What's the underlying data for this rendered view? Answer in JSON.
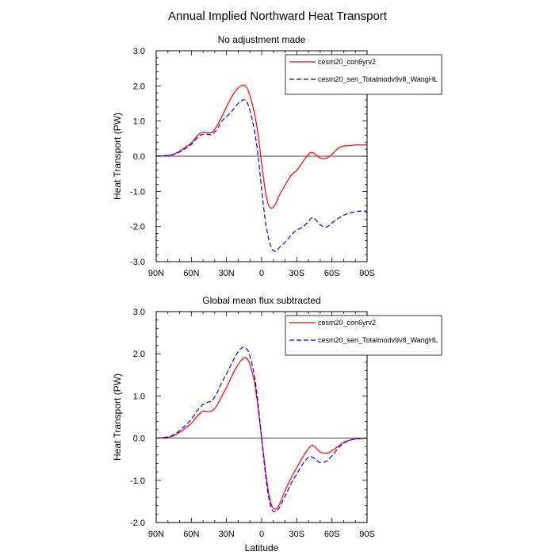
{
  "figure": {
    "title": "Annual Implied Northward Heat Transport"
  },
  "colors": {
    "series1": "#ff0000",
    "series2": "#0000ff",
    "axis": "#000000",
    "zero_line": "#000000"
  },
  "chart_data": [
    {
      "type": "line",
      "title": "No adjustment made",
      "xlabel": "",
      "ylabel": "Heat Transport (PW)",
      "xlim": [
        90,
        -90
      ],
      "ylim": [
        -3.0,
        3.0
      ],
      "x_tick_values": [
        90,
        60,
        30,
        0,
        -30,
        -60,
        -90
      ],
      "x_tick_labels": [
        "90N",
        "60N",
        "30N",
        "0",
        "30S",
        "60S",
        "90S"
      ],
      "y_tick_values": [
        3.0,
        2.0,
        1.0,
        0.0,
        -1.0,
        -2.0,
        -3.0
      ],
      "y_tick_labels": [
        "3.0",
        "2.0",
        "1.0",
        "0.0",
        "-1.0",
        "-2.0",
        "-3.0"
      ],
      "zero_line": true,
      "grid": false,
      "legend_placement": "top-right",
      "series": [
        {
          "name": "cesm20_con6yrv2",
          "style": "solid",
          "x": [
            90,
            85,
            80,
            75,
            70,
            65,
            60,
            55,
            52,
            50,
            46,
            42,
            38,
            34,
            30,
            25,
            20,
            16,
            13,
            10,
            6,
            3,
            0,
            -3,
            -6,
            -9,
            -12,
            -15,
            -20,
            -25,
            -30,
            -35,
            -40,
            -43,
            -46,
            -50,
            -55,
            -60,
            -65,
            -70,
            -75,
            -80,
            -85,
            -90
          ],
          "y": [
            0.0,
            0.01,
            0.02,
            0.06,
            0.14,
            0.26,
            0.38,
            0.58,
            0.66,
            0.68,
            0.66,
            0.69,
            0.87,
            1.12,
            1.4,
            1.72,
            1.94,
            2.02,
            1.97,
            1.72,
            1.2,
            0.6,
            -0.2,
            -0.95,
            -1.4,
            -1.47,
            -1.35,
            -1.12,
            -0.83,
            -0.55,
            -0.4,
            -0.17,
            0.06,
            0.11,
            0.05,
            -0.05,
            -0.06,
            0.05,
            0.22,
            0.29,
            0.3,
            0.32,
            0.32,
            0.32
          ]
        },
        {
          "name": "cesm20_sen_Totalmodv9v8_WangHL",
          "style": "dashed",
          "x": [
            90,
            85,
            80,
            75,
            70,
            65,
            60,
            55,
            52,
            50,
            46,
            42,
            38,
            34,
            30,
            25,
            20,
            16,
            13,
            10,
            6,
            3,
            0,
            -3,
            -6,
            -9,
            -12,
            -15,
            -20,
            -25,
            -30,
            -35,
            -40,
            -43,
            -46,
            -50,
            -55,
            -60,
            -65,
            -70,
            -75,
            -80,
            -85,
            -90
          ],
          "y": [
            0.0,
            0.01,
            0.02,
            0.05,
            0.12,
            0.22,
            0.34,
            0.52,
            0.6,
            0.62,
            0.62,
            0.63,
            0.77,
            1.0,
            1.12,
            1.3,
            1.5,
            1.6,
            1.56,
            1.3,
            0.7,
            0.0,
            -0.95,
            -1.8,
            -2.35,
            -2.65,
            -2.7,
            -2.6,
            -2.45,
            -2.25,
            -2.1,
            -2.02,
            -1.85,
            -1.75,
            -1.8,
            -1.95,
            -2.02,
            -1.9,
            -1.78,
            -1.68,
            -1.62,
            -1.58,
            -1.56,
            -1.56
          ]
        }
      ]
    },
    {
      "type": "line",
      "title": "Global mean flux subtracted",
      "xlabel": "Latitude",
      "ylabel": "Heat Transport (PW)",
      "xlim": [
        90,
        -90
      ],
      "ylim": [
        -2.0,
        3.0
      ],
      "x_tick_values": [
        90,
        60,
        30,
        0,
        -30,
        -60,
        -90
      ],
      "x_tick_labels": [
        "90N",
        "60N",
        "30N",
        "0",
        "30S",
        "60S",
        "90S"
      ],
      "y_tick_values": [
        3.0,
        2.0,
        1.0,
        0.0,
        -1.0,
        -2.0
      ],
      "y_tick_labels": [
        "3.0",
        "2.0",
        "1.0",
        "0.0",
        "-1.0",
        "-2.0"
      ],
      "zero_line": true,
      "grid": false,
      "legend_placement": "top-right",
      "series": [
        {
          "name": "cesm20_con6yrv2",
          "style": "solid",
          "x": [
            90,
            85,
            80,
            75,
            70,
            65,
            60,
            55,
            52,
            50,
            46,
            42,
            38,
            34,
            30,
            25,
            20,
            16,
            13,
            10,
            6,
            3,
            0,
            -3,
            -6,
            -9,
            -12,
            -15,
            -20,
            -25,
            -30,
            -35,
            -40,
            -43,
            -46,
            -50,
            -55,
            -60,
            -65,
            -70,
            -75,
            -80,
            -85,
            -90
          ],
          "y": [
            0.0,
            0.01,
            0.02,
            0.06,
            0.14,
            0.24,
            0.35,
            0.52,
            0.6,
            0.64,
            0.63,
            0.65,
            0.78,
            1.0,
            1.2,
            1.5,
            1.75,
            1.88,
            1.9,
            1.75,
            1.3,
            0.7,
            0.0,
            -0.7,
            -1.3,
            -1.62,
            -1.68,
            -1.58,
            -1.25,
            -0.95,
            -0.7,
            -0.45,
            -0.25,
            -0.17,
            -0.22,
            -0.33,
            -0.36,
            -0.3,
            -0.2,
            -0.1,
            -0.05,
            -0.02,
            -0.01,
            0.0
          ]
        },
        {
          "name": "cesm20_sen_Totalmodv9v8_WangHL",
          "style": "dashed",
          "x": [
            90,
            85,
            80,
            75,
            70,
            65,
            60,
            55,
            52,
            50,
            46,
            42,
            38,
            34,
            30,
            25,
            20,
            16,
            13,
            10,
            6,
            3,
            0,
            -3,
            -6,
            -9,
            -12,
            -15,
            -20,
            -25,
            -30,
            -35,
            -40,
            -43,
            -46,
            -50,
            -55,
            -60,
            -65,
            -70,
            -75,
            -80,
            -85,
            -90
          ],
          "y": [
            0.0,
            0.01,
            0.03,
            0.08,
            0.18,
            0.3,
            0.45,
            0.65,
            0.74,
            0.8,
            0.85,
            0.9,
            1.08,
            1.32,
            1.52,
            1.8,
            2.05,
            2.15,
            2.12,
            1.95,
            1.45,
            0.8,
            0.0,
            -0.8,
            -1.4,
            -1.7,
            -1.74,
            -1.65,
            -1.38,
            -1.08,
            -0.85,
            -0.62,
            -0.45,
            -0.45,
            -0.5,
            -0.58,
            -0.55,
            -0.42,
            -0.25,
            -0.12,
            -0.05,
            -0.02,
            -0.01,
            0.0
          ]
        }
      ]
    }
  ]
}
